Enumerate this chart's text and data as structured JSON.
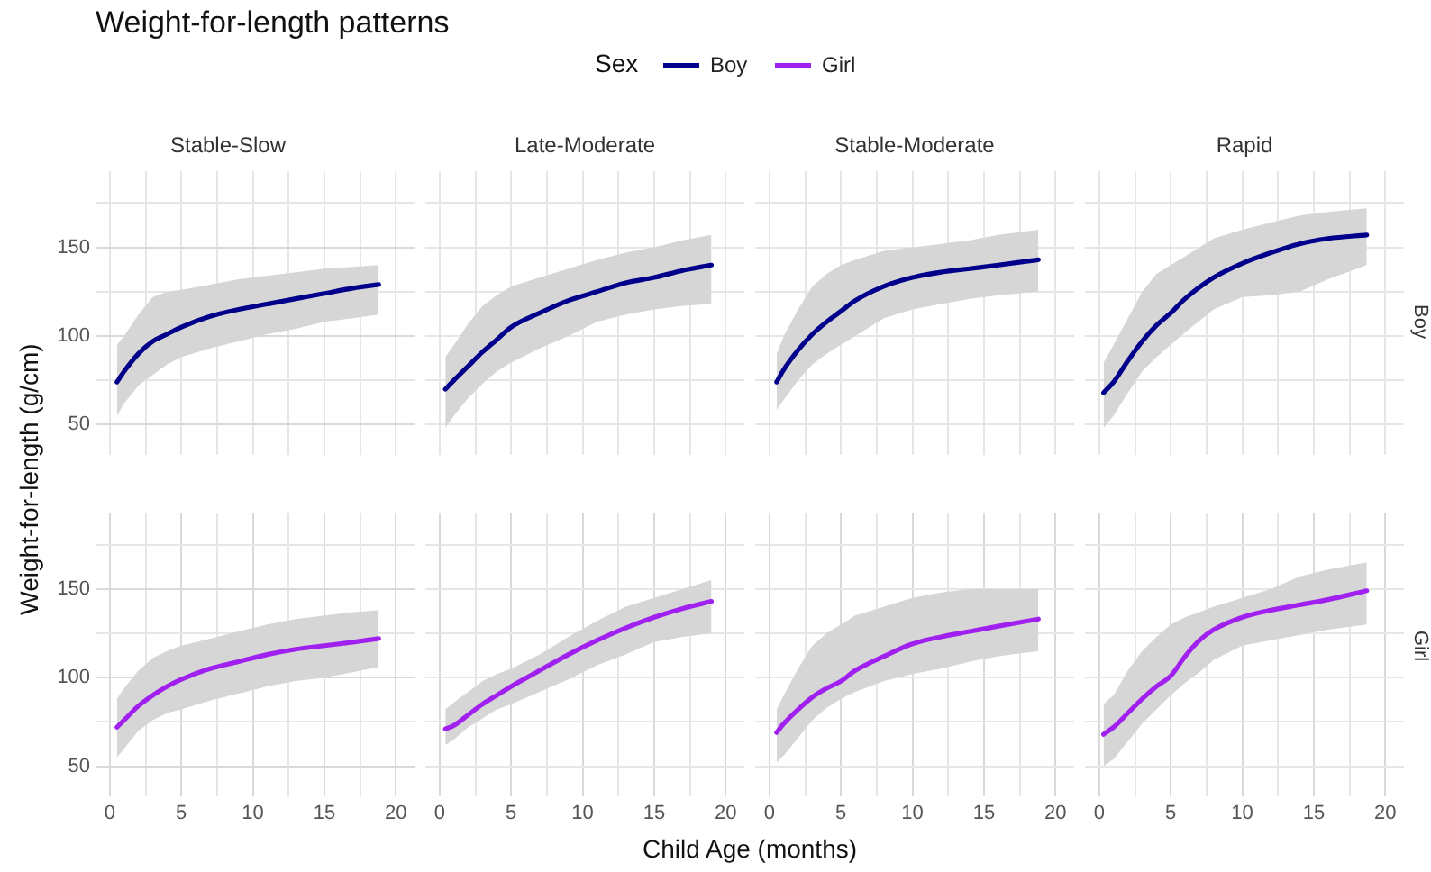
{
  "chart_data": [
    {
      "type": "line",
      "title": "Stable-Slow",
      "legend": "top",
      "grid": true,
      "tick_labels": "y",
      "xlim": [
        -1,
        21.3
      ],
      "ylim": [
        33,
        193
      ],
      "xticks": [
        0,
        {
          "value": 2.5,
          "label": null
        },
        5,
        {
          "value": 7.5,
          "label": null
        },
        10,
        {
          "value": 12.5,
          "label": null
        },
        15,
        {
          "value": 17.5,
          "label": null
        },
        20
      ],
      "yticks": [
        50,
        {
          "value": 75,
          "label": null
        },
        100,
        {
          "value": 125,
          "label": null
        },
        150,
        {
          "value": 175,
          "label": null
        }
      ],
      "x": [
        0.5,
        1,
        2,
        3,
        4,
        5,
        7,
        9,
        11,
        13,
        15,
        17,
        18.8
      ],
      "series": [
        {
          "name": "Boy",
          "color": "#00008b",
          "values": [
            74,
            80,
            90,
            97,
            101,
            105,
            111,
            115,
            118,
            121,
            124,
            127,
            129
          ],
          "lower": [
            55,
            62,
            72,
            78,
            84,
            88,
            93,
            97,
            101,
            104,
            108,
            110,
            112
          ],
          "upper": [
            95,
            100,
            112,
            122,
            125,
            126,
            129,
            132,
            134,
            136,
            138,
            139,
            140
          ]
        }
      ]
    },
    {
      "type": "line",
      "title": "Late-Moderate",
      "grid": true,
      "tick_labels": false,
      "xlim": [
        -1,
        21.3
      ],
      "ylim": [
        33,
        193
      ],
      "xticks": [
        0,
        {
          "value": 2.5,
          "label": null
        },
        5,
        {
          "value": 7.5,
          "label": null
        },
        10,
        {
          "value": 12.5,
          "label": null
        },
        15,
        {
          "value": 17.5,
          "label": null
        },
        20
      ],
      "yticks": [
        50,
        {
          "value": 75,
          "label": null
        },
        100,
        {
          "value": 125,
          "label": null
        },
        150,
        {
          "value": 175,
          "label": null
        }
      ],
      "x": [
        0.4,
        1,
        2,
        3,
        4,
        5,
        7,
        9,
        11,
        13,
        15,
        17,
        19
      ],
      "series": [
        {
          "color": "#00008b",
          "values": [
            70,
            75,
            83,
            91,
            98,
            105,
            113,
            120,
            125,
            130,
            133,
            137,
            140
          ],
          "lower": [
            48,
            55,
            65,
            73,
            80,
            85,
            93,
            100,
            108,
            112,
            115,
            117,
            118
          ],
          "upper": [
            88,
            95,
            107,
            117,
            123,
            128,
            133,
            138,
            143,
            147,
            150,
            154,
            157
          ]
        }
      ]
    },
    {
      "type": "line",
      "title": "Stable-Moderate",
      "grid": true,
      "tick_labels": false,
      "xlim": [
        -1,
        21.3
      ],
      "ylim": [
        33,
        193
      ],
      "xticks": [
        0,
        {
          "value": 2.5,
          "label": null
        },
        5,
        {
          "value": 7.5,
          "label": null
        },
        10,
        {
          "value": 12.5,
          "label": null
        },
        15,
        {
          "value": 17.5,
          "label": null
        },
        20
      ],
      "yticks": [
        50,
        {
          "value": 75,
          "label": null
        },
        100,
        {
          "value": 125,
          "label": null
        },
        150,
        {
          "value": 175,
          "label": null
        }
      ],
      "x": [
        0.5,
        1,
        2,
        3,
        4,
        5,
        6,
        8,
        10,
        12,
        14,
        16,
        18.8
      ],
      "series": [
        {
          "color": "#00008b",
          "values": [
            74,
            81,
            92,
            101,
            108,
            114,
            120,
            128,
            133,
            136,
            138,
            140,
            143
          ],
          "lower": [
            58,
            64,
            75,
            84,
            90,
            95,
            100,
            110,
            115,
            118,
            121,
            123,
            125
          ],
          "upper": [
            90,
            100,
            115,
            128,
            135,
            140,
            143,
            148,
            150,
            152,
            154,
            157,
            160
          ]
        }
      ]
    },
    {
      "type": "line",
      "title": "Rapid",
      "y2label": "Boy",
      "grid": true,
      "tick_labels": false,
      "xlim": [
        -1,
        21.3
      ],
      "ylim": [
        33,
        193
      ],
      "xticks": [
        0,
        {
          "value": 2.5,
          "label": null
        },
        5,
        {
          "value": 7.5,
          "label": null
        },
        10,
        {
          "value": 12.5,
          "label": null
        },
        15,
        {
          "value": 17.5,
          "label": null
        },
        20
      ],
      "yticks": [
        50,
        {
          "value": 75,
          "label": null
        },
        100,
        {
          "value": 125,
          "label": null
        },
        150,
        {
          "value": 175,
          "label": null
        }
      ],
      "x": [
        0.3,
        1,
        2,
        3,
        4,
        5,
        6,
        8,
        10,
        12,
        14,
        16,
        18.7
      ],
      "series": [
        {
          "color": "#00008b",
          "values": [
            68,
            74,
            86,
            97,
            106,
            113,
            121,
            133,
            141,
            147,
            152,
            155,
            157
          ],
          "lower": [
            48,
            55,
            68,
            80,
            88,
            95,
            102,
            115,
            122,
            123,
            125,
            132,
            140
          ],
          "upper": [
            85,
            95,
            110,
            125,
            135,
            140,
            145,
            155,
            160,
            164,
            168,
            170,
            172
          ]
        }
      ]
    },
    {
      "type": "line",
      "legend": "top",
      "grid": true,
      "xlim": [
        -1,
        21.3
      ],
      "ylim": [
        33,
        193
      ],
      "xticks": [
        0,
        {
          "value": 2.5,
          "label": null
        },
        5,
        {
          "value": 7.5,
          "label": null
        },
        10,
        {
          "value": 12.5,
          "label": null
        },
        15,
        {
          "value": 17.5,
          "label": null
        },
        20
      ],
      "yticks": [
        50,
        {
          "value": 75,
          "label": null
        },
        100,
        {
          "value": 125,
          "label": null
        },
        150,
        {
          "value": 175,
          "label": null
        }
      ],
      "x": [
        0.5,
        1,
        2,
        3,
        4,
        5,
        7,
        9,
        11,
        13,
        15,
        17,
        18.8
      ],
      "series": [
        {
          "name": "Girl",
          "color": "#a020f0",
          "values": [
            72,
            76,
            84,
            90,
            95,
            99,
            105,
            109,
            113,
            116,
            118,
            120,
            122
          ],
          "lower": [
            55,
            60,
            70,
            76,
            80,
            82,
            87,
            91,
            95,
            98,
            100,
            103,
            106
          ],
          "upper": [
            88,
            94,
            104,
            111,
            115,
            118,
            122,
            126,
            130,
            133,
            135,
            137,
            138
          ]
        }
      ]
    },
    {
      "type": "line",
      "grid": true,
      "tick_labels": "x",
      "xlim": [
        -1,
        21.3
      ],
      "ylim": [
        33,
        193
      ],
      "xticks": [
        0,
        {
          "value": 2.5,
          "label": null
        },
        5,
        {
          "value": 7.5,
          "label": null
        },
        10,
        {
          "value": 12.5,
          "label": null
        },
        15,
        {
          "value": 17.5,
          "label": null
        },
        20
      ],
      "yticks": [
        50,
        {
          "value": 75,
          "label": null
        },
        100,
        {
          "value": 125,
          "label": null
        },
        150,
        {
          "value": 175,
          "label": null
        }
      ],
      "x": [
        0.4,
        1,
        2,
        3,
        4,
        5,
        7,
        9,
        11,
        13,
        15,
        17,
        19
      ],
      "series": [
        {
          "color": "#a020f0",
          "values": [
            71,
            73,
            79,
            85,
            90,
            95,
            104,
            113,
            121,
            128,
            134,
            139,
            143
          ],
          "lower": [
            62,
            65,
            72,
            77,
            82,
            85,
            92,
            99,
            107,
            113,
            120,
            123,
            125
          ],
          "upper": [
            82,
            86,
            92,
            98,
            102,
            105,
            113,
            123,
            132,
            140,
            145,
            150,
            155
          ]
        }
      ]
    },
    {
      "type": "line",
      "grid": true,
      "tick_labels": "x",
      "xlim": [
        -1,
        21.3
      ],
      "ylim": [
        33,
        193
      ],
      "xticks": [
        0,
        {
          "value": 2.5,
          "label": null
        },
        5,
        {
          "value": 7.5,
          "label": null
        },
        10,
        {
          "value": 12.5,
          "label": null
        },
        15,
        {
          "value": 17.5,
          "label": null
        },
        20
      ],
      "yticks": [
        50,
        {
          "value": 75,
          "label": null
        },
        100,
        {
          "value": 125,
          "label": null
        },
        150,
        {
          "value": 175,
          "label": null
        }
      ],
      "x": [
        0.5,
        1,
        2,
        3,
        4,
        5,
        6,
        8,
        10,
        12,
        14,
        16,
        18.8
      ],
      "series": [
        {
          "color": "#a020f0",
          "values": [
            69,
            74,
            82,
            89,
            94,
            98,
            104,
            112,
            119,
            123,
            126,
            129,
            133
          ],
          "lower": [
            52,
            56,
            66,
            76,
            83,
            88,
            92,
            98,
            102,
            105,
            109,
            112,
            115
          ],
          "upper": [
            82,
            90,
            105,
            118,
            125,
            130,
            135,
            140,
            145,
            148,
            150,
            150,
            150
          ]
        }
      ]
    },
    {
      "type": "line",
      "y2label": "Girl",
      "grid": true,
      "tick_labels": "x",
      "xlim": [
        -1,
        21.3
      ],
      "ylim": [
        33,
        193
      ],
      "xticks": [
        0,
        {
          "value": 2.5,
          "label": null
        },
        5,
        {
          "value": 7.5,
          "label": null
        },
        10,
        {
          "value": 12.5,
          "label": null
        },
        15,
        {
          "value": 17.5,
          "label": null
        },
        20
      ],
      "yticks": [
        50,
        {
          "value": 75,
          "label": null
        },
        100,
        {
          "value": 125,
          "label": null
        },
        150,
        {
          "value": 175,
          "label": null
        }
      ],
      "x": [
        0.3,
        1,
        2,
        3,
        4,
        5,
        6,
        7,
        8,
        10,
        12,
        14,
        16,
        18.7
      ],
      "series": [
        {
          "color": "#a020f0",
          "values": [
            68,
            72,
            80,
            88,
            95,
            101,
            112,
            121,
            127,
            134,
            138,
            141,
            144,
            149
          ],
          "lower": [
            50,
            54,
            64,
            74,
            82,
            90,
            97,
            103,
            110,
            118,
            121,
            124,
            127,
            130
          ],
          "upper": [
            85,
            90,
            104,
            115,
            123,
            130,
            134,
            137,
            140,
            145,
            150,
            157,
            161,
            165
          ]
        }
      ]
    },
    {
      "type": "other",
      "title": "Weight-for-length patterns",
      "legend_title": "Sex",
      "xlabel": "Child Age (months)",
      "ylabel": "Weight-for-length (g/cm)"
    }
  ]
}
